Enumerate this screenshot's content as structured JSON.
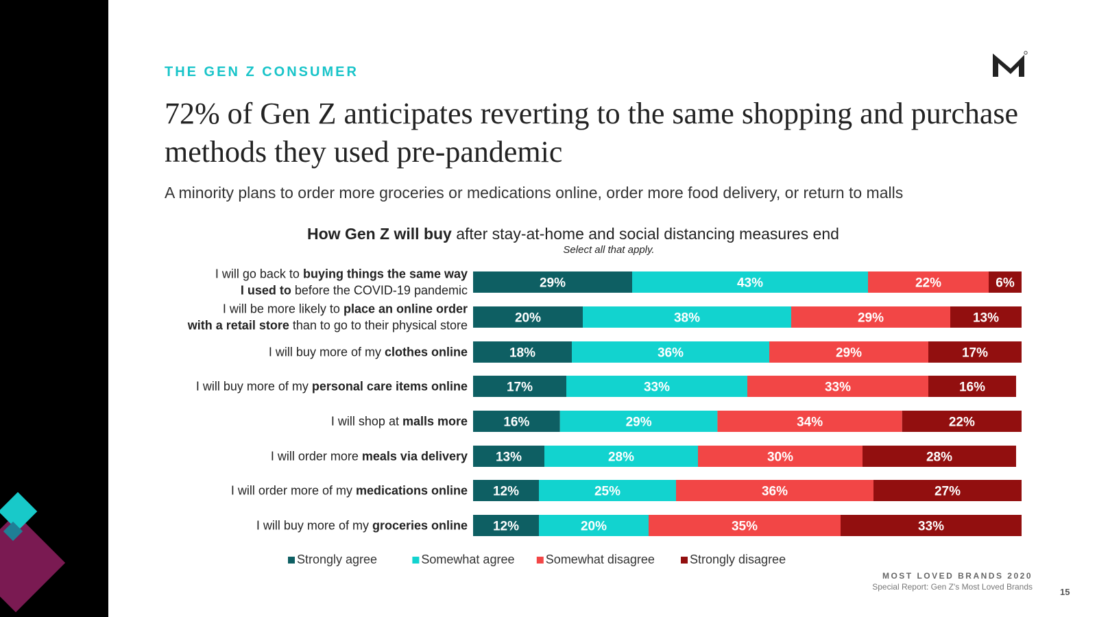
{
  "header": {
    "section_label": "THE GEN Z CONSUMER",
    "headline": "72% of Gen Z anticipates reverting to the same shopping and purchase methods they used pre-pandemic",
    "subtitle": "A minority plans to order more groceries or medications online, order more food delivery, or return to malls"
  },
  "logo": {
    "icon": "m-brand-logo",
    "color": "#222222"
  },
  "sidebar": {
    "colors": {
      "background": "#000000",
      "purple": "#7a1a52",
      "teal": "#18c9c9"
    }
  },
  "chart_data": {
    "type": "bar",
    "orientation": "horizontal",
    "stacked": true,
    "title_bold": "How Gen Z will buy",
    "title_rest": " after stay-at-home and social distancing measures end",
    "note": "Select all that apply.",
    "value_suffix": "%",
    "xlim": [
      0,
      100
    ],
    "grid": false,
    "legend_position": "bottom",
    "categories": [
      [
        {
          "t": "I will go back to ",
          "b": false
        },
        {
          "t": "buying things the same way",
          "b": true
        },
        {
          "br": true
        },
        {
          "t": "I used to",
          "b": true
        },
        {
          "t": " before the COVID-19 pandemic",
          "b": false
        }
      ],
      [
        {
          "t": "I will be more likely to ",
          "b": false
        },
        {
          "t": "place an online order",
          "b": true
        },
        {
          "br": true
        },
        {
          "t": "with a retail store",
          "b": true
        },
        {
          "t": " than to go to their physical store",
          "b": false
        }
      ],
      [
        {
          "t": "I will buy more of my ",
          "b": false
        },
        {
          "t": "clothes online",
          "b": true
        }
      ],
      [
        {
          "t": "I will buy more of my ",
          "b": false
        },
        {
          "t": "personal care items online",
          "b": true
        }
      ],
      [
        {
          "t": "I will shop at ",
          "b": false
        },
        {
          "t": "malls more",
          "b": true
        }
      ],
      [
        {
          "t": "I will order more ",
          "b": false
        },
        {
          "t": "meals via delivery",
          "b": true
        }
      ],
      [
        {
          "t": "I will order more of my ",
          "b": false
        },
        {
          "t": "medications online",
          "b": true
        }
      ],
      [
        {
          "t": "I will buy more of my ",
          "b": false
        },
        {
          "t": "groceries online",
          "b": true
        }
      ]
    ],
    "series": [
      {
        "name": "Strongly agree",
        "color": "#0e5f63",
        "values": [
          29,
          20,
          18,
          17,
          16,
          13,
          12,
          12
        ]
      },
      {
        "name": "Somewhat agree",
        "color": "#12d3cf",
        "values": [
          43,
          38,
          36,
          33,
          29,
          28,
          25,
          20
        ]
      },
      {
        "name": "Somewhat disagree",
        "color": "#f24646",
        "values": [
          22,
          29,
          29,
          33,
          34,
          30,
          36,
          35
        ]
      },
      {
        "name": "Strongly disagree",
        "color": "#920f0f",
        "values": [
          6,
          13,
          17,
          16,
          22,
          28,
          27,
          33
        ]
      }
    ]
  },
  "footer": {
    "brand": "MOST LOVED BRANDS 2020",
    "report": "Special Report: Gen Z's Most Loved Brands",
    "page_number": "15"
  }
}
